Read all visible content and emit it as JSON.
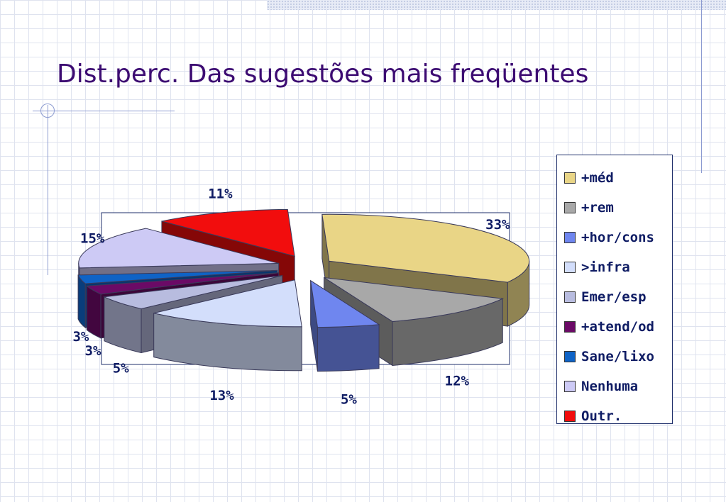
{
  "slide": {
    "title": "Dist.perc. Das sugestões mais freqüentes"
  },
  "chart_data": {
    "type": "pie",
    "title": "",
    "legend_position": "right",
    "slices": [
      {
        "name": "+méd",
        "value": 33,
        "label": "33%",
        "color": "#e9d586"
      },
      {
        "name": "+rem",
        "value": 12,
        "label": "12%",
        "color": "#a8a8a8"
      },
      {
        "name": "+hor/cons",
        "value": 5,
        "label": "5%",
        "color": "#6f86ef"
      },
      {
        "name": ">infra",
        "value": 13,
        "label": "13%",
        "color": "#d3defb"
      },
      {
        "name": "Emer/esp",
        "value": 5,
        "label": "5%",
        "color": "#b8bcdf"
      },
      {
        "name": "+atend/od",
        "value": 3,
        "label": "3%",
        "color": "#6b0a66"
      },
      {
        "name": "Sane/lixo",
        "value": 3,
        "label": "3%",
        "color": "#0f63c6"
      },
      {
        "name": "Nenhuma",
        "value": 15,
        "label": "15%",
        "color": "#cdcaf5"
      },
      {
        "name": "Outr.",
        "value": 11,
        "label": "11%",
        "color": "#f20d0d"
      }
    ]
  }
}
